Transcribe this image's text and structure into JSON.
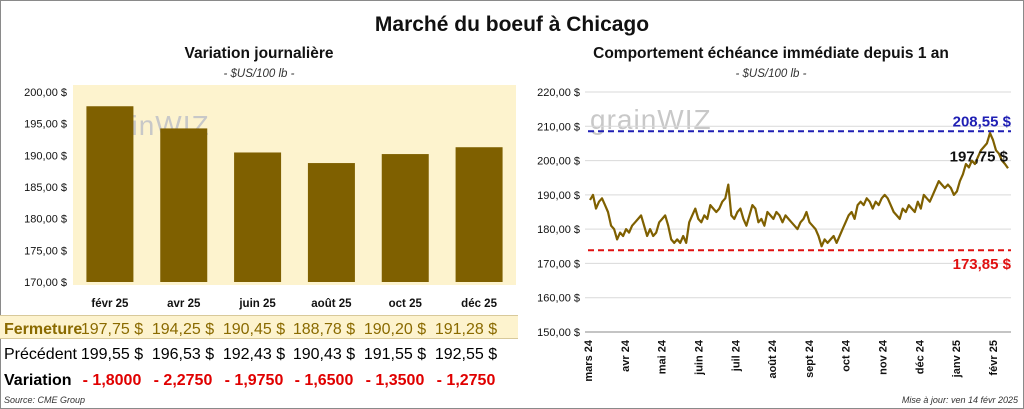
{
  "title": "Marché du boeuf à Chicago",
  "source": "Source: CME Group",
  "updated": "Mise à jour: ven 14 févr 2025",
  "watermark": "grainWIZ",
  "colors": {
    "bar": "#7f6000",
    "line": "#7f6000",
    "high": "#1f1fb4",
    "low": "#e01010",
    "panel": "#fdf3ce"
  },
  "chart_data": [
    {
      "type": "bar",
      "title": "Variation journalière",
      "subtitle": "- $US/100 lb -",
      "categories": [
        "févr 25",
        "avr 25",
        "juin 25",
        "août 25",
        "oct 25",
        "déc 25"
      ],
      "values": [
        197.75,
        194.25,
        190.45,
        188.78,
        190.2,
        191.28
      ],
      "yticks": [
        "200,00 $",
        "195,00 $",
        "190,00 $",
        "185,00 $",
        "180,00 $",
        "175,00 $",
        "170,00 $"
      ],
      "ylim": [
        170,
        200
      ],
      "grid": false
    },
    {
      "type": "line",
      "title": "Comportement échéance immédiate depuis 1 an",
      "subtitle": "- $US/100 lb -",
      "yticks": [
        "220,00 $",
        "210,00 $",
        "200,00 $",
        "190,00 $",
        "180,00 $",
        "170,00 $",
        "160,00 $",
        "150,00 $"
      ],
      "ylim": [
        150,
        220
      ],
      "xticks": [
        "mars 24",
        "avr 24",
        "mai 24",
        "juin 24",
        "juil 24",
        "août 24",
        "sept 24",
        "oct 24",
        "nov 24",
        "déc 24",
        "janv 25",
        "févr 25"
      ],
      "high": {
        "value": 208.55,
        "label": "208,55 $"
      },
      "low": {
        "value": 173.85,
        "label": "173,85 $"
      },
      "last": {
        "value": 197.75,
        "label": "197,75 $"
      },
      "series": [
        {
          "values": [
            188.5,
            190,
            186,
            188,
            189,
            187,
            185,
            181,
            180,
            177,
            179,
            178,
            180,
            179,
            181,
            182,
            183,
            184,
            181,
            178,
            180,
            178,
            179,
            182,
            183,
            184,
            181,
            177,
            176,
            177,
            176,
            178,
            176,
            182,
            184,
            186,
            183,
            182,
            184,
            183,
            187,
            186,
            185,
            186,
            188,
            189,
            193,
            184,
            183,
            185,
            186,
            183,
            181,
            184,
            187,
            186,
            182,
            183,
            181,
            185,
            184,
            183,
            185,
            184,
            182,
            184,
            183,
            182,
            181,
            180,
            182,
            183,
            185,
            182,
            181,
            180,
            178,
            175,
            177,
            176,
            177,
            178,
            176,
            178,
            180,
            182,
            184,
            185,
            183,
            187,
            188,
            187,
            189,
            188,
            186,
            188,
            187,
            189,
            190,
            189,
            187,
            185,
            184,
            183,
            186,
            185,
            187,
            186,
            185,
            188,
            186,
            190,
            189,
            188,
            190,
            192,
            194,
            193,
            192,
            193,
            192,
            190,
            191,
            194,
            196,
            199,
            198,
            200,
            199,
            201,
            203,
            204,
            205,
            208,
            206,
            203,
            202,
            200,
            199,
            197.75
          ]
        }
      ]
    }
  ],
  "table": {
    "rows": [
      {
        "label": "Fermeture",
        "cells": [
          "197,75  $",
          "194,25  $",
          "190,45  $",
          "188,78  $",
          "190,20  $",
          "191,28  $"
        ]
      },
      {
        "label": "Précédent",
        "cells": [
          "199,55  $",
          "196,53  $",
          "192,43  $",
          "190,43  $",
          "191,55  $",
          "192,55  $"
        ]
      },
      {
        "label": "Variation",
        "cells": [
          "- 1,8000",
          "- 2,2750",
          "- 1,9750",
          "- 1,6500",
          "- 1,3500",
          "- 1,2750"
        ]
      }
    ]
  }
}
